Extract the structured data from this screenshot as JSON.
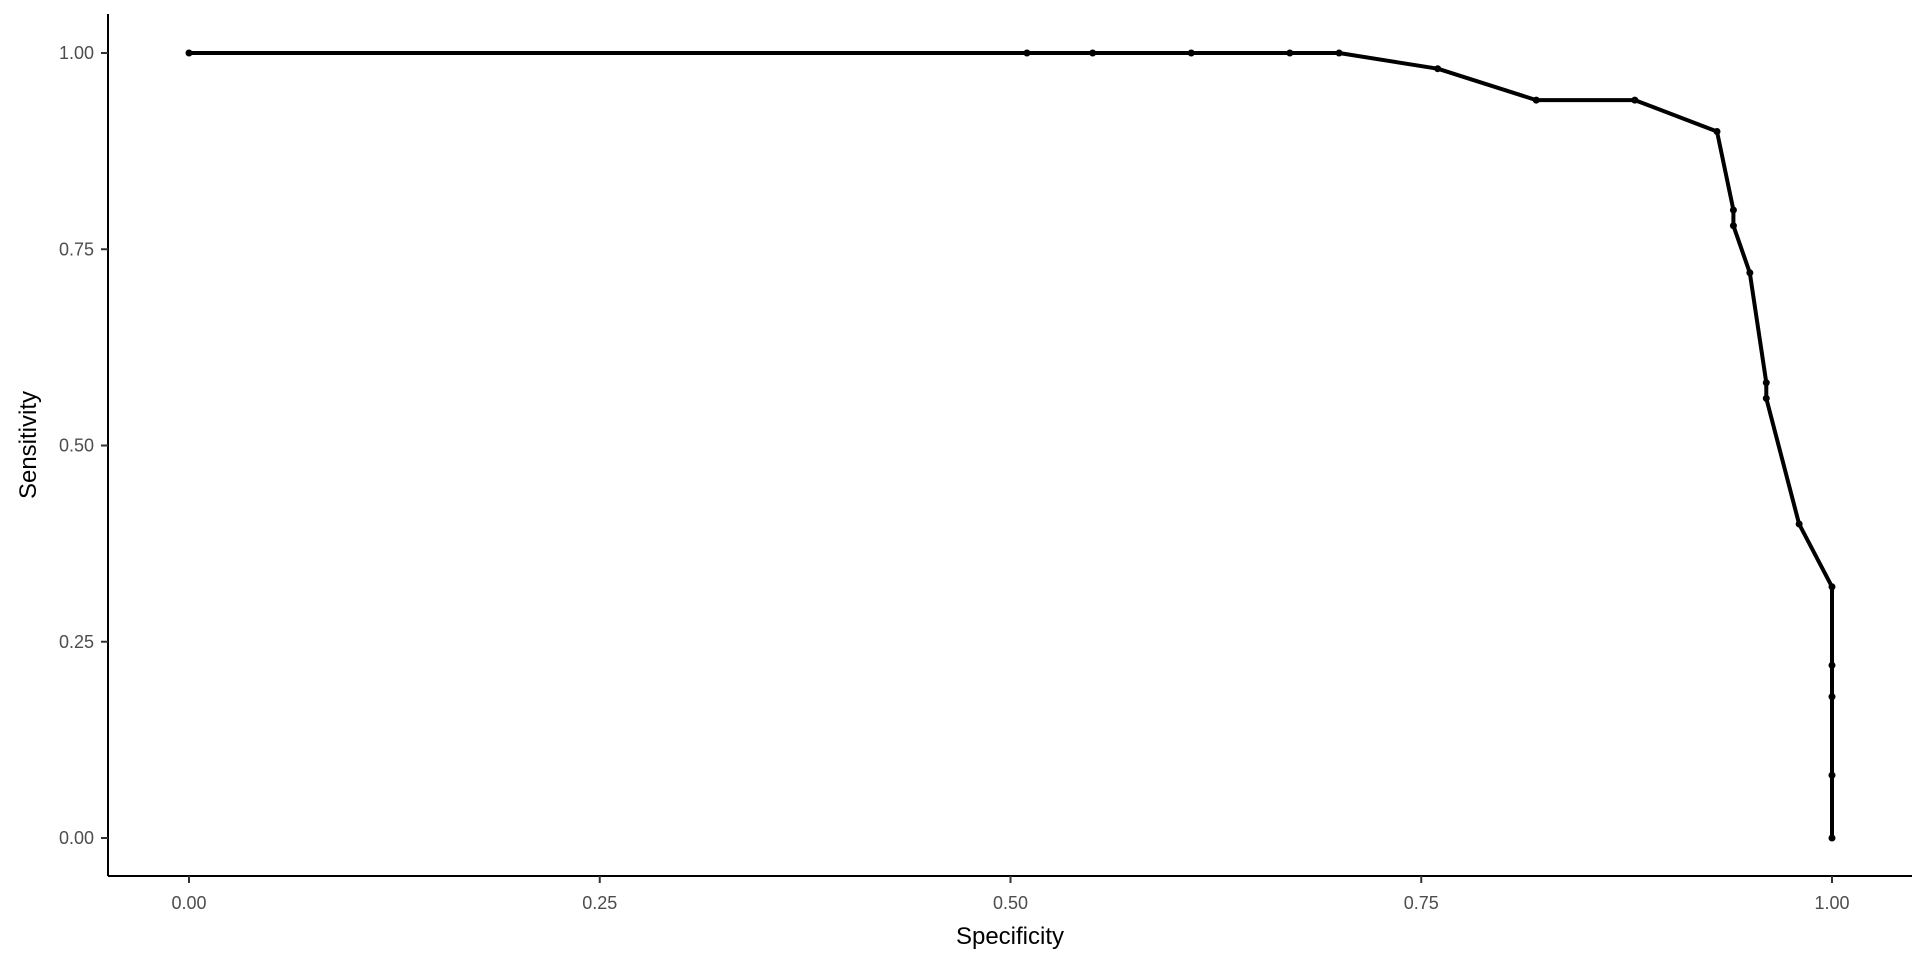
{
  "chart_data": {
    "type": "line",
    "title": "",
    "xlabel": "Specificity",
    "ylabel": "Sensitivity",
    "xlim": [
      -0.05,
      1.05
    ],
    "ylim": [
      -0.05,
      1.05
    ],
    "x_ticks": [
      0.0,
      0.25,
      0.5,
      0.75,
      1.0
    ],
    "x_tick_labels": [
      "0.00",
      "0.25",
      "0.50",
      "0.75",
      "1.00"
    ],
    "y_ticks": [
      0.0,
      0.25,
      0.5,
      0.75,
      1.0
    ],
    "y_tick_labels": [
      "0.00",
      "0.25",
      "0.50",
      "0.75",
      "1.00"
    ],
    "grid": false,
    "legend": "none",
    "line_color": "#000000",
    "series": [
      {
        "x": [
          0.0,
          0.51,
          0.55,
          0.61,
          0.67,
          0.7,
          0.76,
          0.82,
          0.88,
          0.93,
          0.94,
          0.94,
          0.95,
          0.96,
          0.96,
          0.98,
          1.0,
          1.0,
          1.0,
          1.0,
          1.0
        ],
        "y": [
          1.0,
          1.0,
          1.0,
          1.0,
          1.0,
          1.0,
          0.98,
          0.94,
          0.94,
          0.9,
          0.8,
          0.78,
          0.72,
          0.58,
          0.56,
          0.4,
          0.32,
          0.22,
          0.18,
          0.08,
          0.0
        ]
      }
    ]
  }
}
